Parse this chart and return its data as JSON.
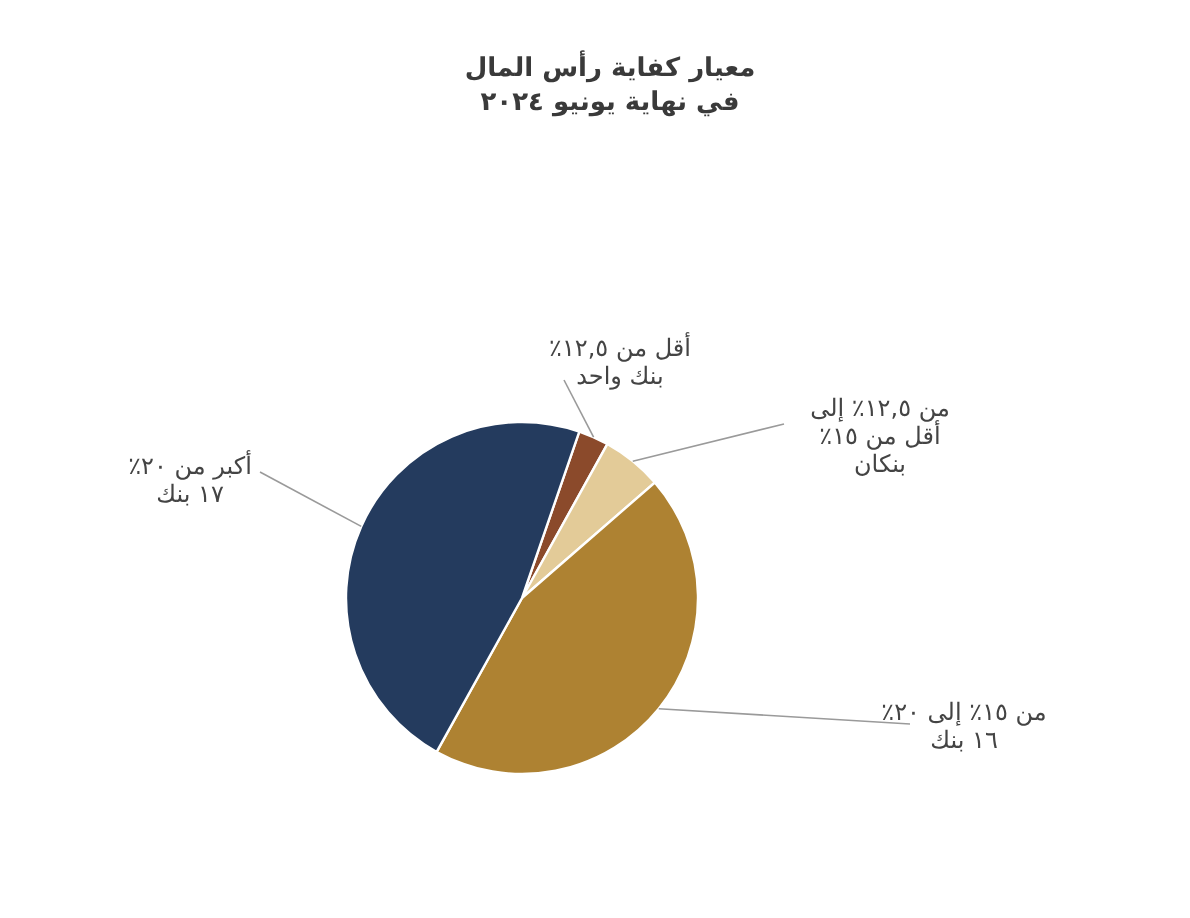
{
  "chart_data": {
    "type": "pie",
    "title": "معيار كفاية رأس المال",
    "subtitle": "في نهاية يونيو ٢٠٢٤",
    "categories": [
      "أقل من ١٢,٥٪",
      "من ١٢,٥٪ إلى أقل من ١٥٪",
      "من ١٥٪ إلى ٢٠٪",
      "أكبر من ٢٠٪"
    ],
    "values": [
      1,
      2,
      16,
      17
    ],
    "colors": [
      "#8b4a2b",
      "#e3cb98",
      "#ae8232",
      "#243b5e"
    ],
    "value_labels": [
      "بنك واحد",
      "بنكان",
      "١٦ بنك",
      "١٧ بنك"
    ]
  }
}
